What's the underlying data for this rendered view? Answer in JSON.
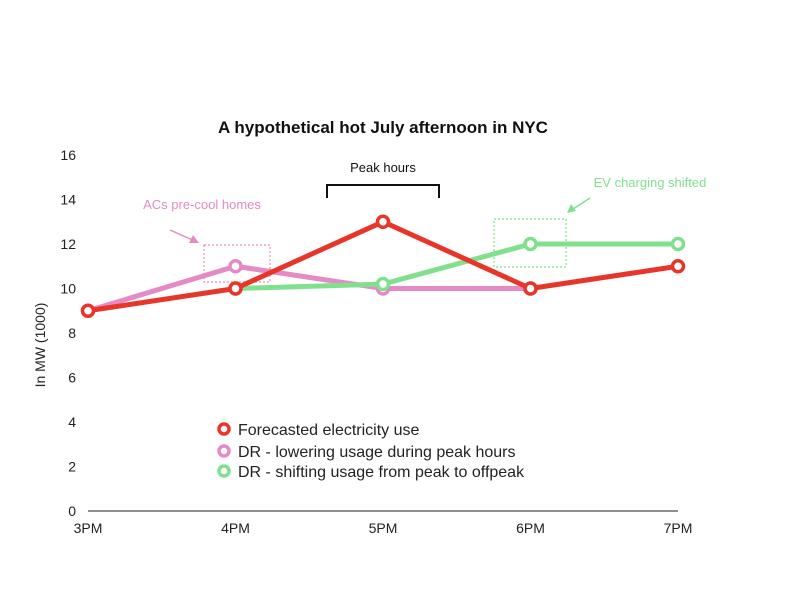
{
  "chart_data": {
    "type": "line",
    "title": "A hypothetical hot July afternoon in NYC",
    "ylabel": "In MW (1000)",
    "xlabel": "",
    "categories": [
      "3PM",
      "4PM",
      "5PM",
      "6PM",
      "7PM"
    ],
    "ylim": [
      0,
      16
    ],
    "yticks": [
      "0",
      "2",
      "4",
      "6",
      "8",
      "10",
      "12",
      "14",
      "16"
    ],
    "grid": false,
    "legend_position": "bottom-center",
    "series": [
      {
        "name": "Forecasted electricity use",
        "color": "#e8352a",
        "values": [
          9,
          10,
          13,
          10,
          11
        ]
      },
      {
        "name": "DR - lowering usage during peak hours",
        "color": "#e58ac4",
        "values": [
          9,
          11,
          10,
          10,
          null
        ]
      },
      {
        "name": "DR - shifting usage from peak to offpeak",
        "color": "#80e08e",
        "values": [
          null,
          10,
          10.2,
          12,
          12
        ]
      }
    ],
    "annotations": {
      "peak_hours": "Peak hours",
      "precool": "ACs pre-cool homes",
      "ev_shift": "EV charging shifted"
    },
    "annotation_colors": {
      "precool": "#e58ac4",
      "ev_shift": "#80e08e"
    }
  }
}
